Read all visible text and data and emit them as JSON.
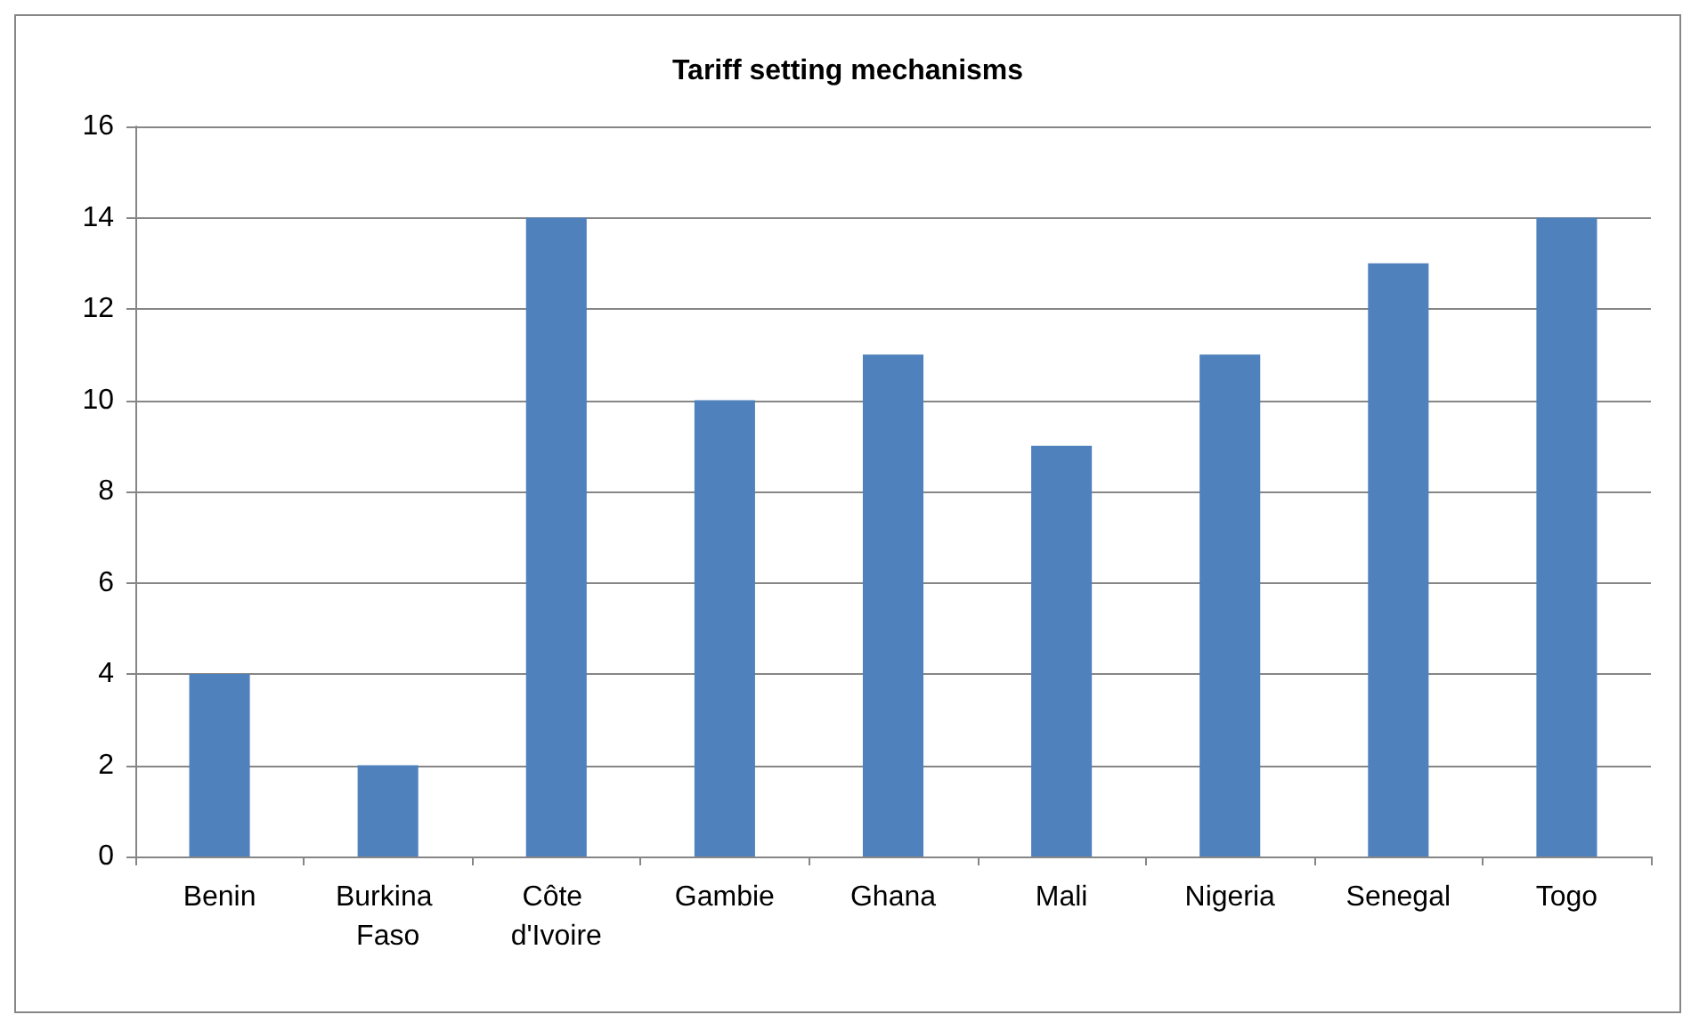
{
  "chart_data": {
    "type": "bar",
    "title": "Tariff setting mechanisms",
    "categories": [
      "Benin",
      "Burkina Faso",
      "Côte d'Ivoire",
      "Gambie",
      "Ghana",
      "Mali",
      "Nigeria",
      "Senegal",
      "Togo"
    ],
    "values": [
      4,
      2,
      14,
      10,
      11,
      9,
      11,
      13,
      14
    ],
    "color": "#4f81bd",
    "ylim": [
      0,
      16
    ],
    "yticks": [
      0,
      2,
      4,
      6,
      8,
      10,
      12,
      14,
      16
    ],
    "grid": "y"
  }
}
